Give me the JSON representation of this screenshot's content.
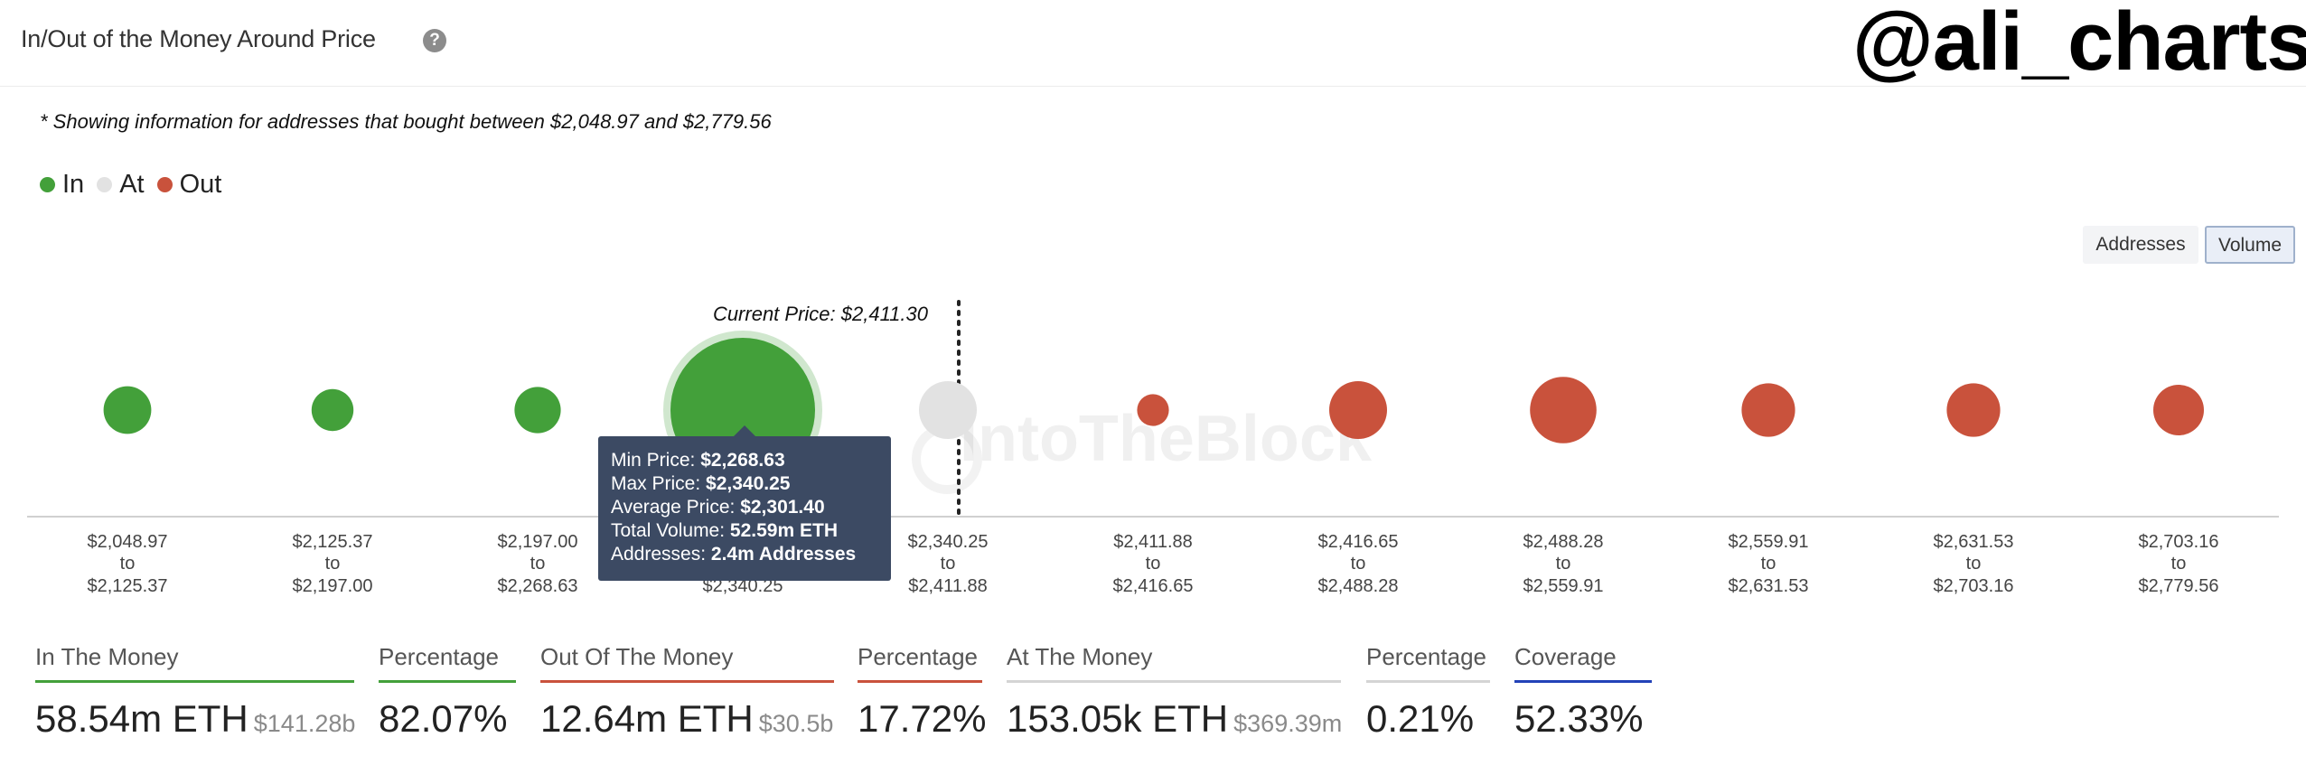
{
  "header": {
    "title": "In/Out of the Money Around Price",
    "help_icon": "question-circle-icon",
    "brand": "@ali_charts"
  },
  "note": "* Showing information for addresses that bought between $2,048.97 and $2,779.56",
  "legend": [
    {
      "label": "In",
      "color": "#43a03a"
    },
    {
      "label": "At",
      "color": "#e2e2e2"
    },
    {
      "label": "Out",
      "color": "#c9523c"
    }
  ],
  "toggles": {
    "addresses": "Addresses",
    "volume": "Volume",
    "selected": "Volume"
  },
  "watermark": "IntoTheBlock",
  "chart_data": {
    "type": "scatter",
    "current_price_label": "Current Price: $2,411.30",
    "current_price": 2411.3,
    "buckets": [
      {
        "from": "$2,048.97",
        "to": "$2,125.37",
        "status": "in",
        "relative_volume": 0.33
      },
      {
        "from": "$2,125.37",
        "to": "$2,197.00",
        "status": "in",
        "relative_volume": 0.29
      },
      {
        "from": "$2,197.00",
        "to": "$2,268.63",
        "status": "in",
        "relative_volume": 0.32
      },
      {
        "from": "$2,268.63",
        "to": "$2,340.25",
        "status": "in",
        "relative_volume": 1.0,
        "highlighted": true
      },
      {
        "from": "$2,340.25",
        "to": "$2,411.88",
        "status": "at",
        "relative_volume": 0.4
      },
      {
        "from": "$2,411.88",
        "to": "$2,416.65",
        "status": "out",
        "relative_volume": 0.22
      },
      {
        "from": "$2,416.65",
        "to": "$2,488.28",
        "status": "out",
        "relative_volume": 0.4
      },
      {
        "from": "$2,488.28",
        "to": "$2,559.91",
        "status": "out",
        "relative_volume": 0.46
      },
      {
        "from": "$2,559.91",
        "to": "$2,631.53",
        "status": "out",
        "relative_volume": 0.37
      },
      {
        "from": "$2,631.53",
        "to": "$2,703.16",
        "status": "out",
        "relative_volume": 0.37
      },
      {
        "from": "$2,703.16",
        "to": "$2,779.56",
        "status": "out",
        "relative_volume": 0.35
      }
    ],
    "to_word": "to",
    "colors": {
      "in": "#43a03a",
      "at": "#e2e2e2",
      "out": "#c9523c"
    }
  },
  "tooltip": {
    "min_label": "Min Price:",
    "min_value": "$2,268.63",
    "max_label": "Max Price:",
    "max_value": "$2,340.25",
    "avg_label": "Average Price:",
    "avg_value": "$2,301.40",
    "vol_label": "Total Volume:",
    "vol_value": "52.59m ETH",
    "addr_label": "Addresses:",
    "addr_value": "2.4m Addresses"
  },
  "stats": [
    {
      "label": "In The Money",
      "value": "58.54m ETH",
      "sub": "$141.28b",
      "color": "#43a03a"
    },
    {
      "label": "Percentage",
      "value": "82.07%",
      "sub": "",
      "color": "#43a03a"
    },
    {
      "label": "Out Of The Money",
      "value": "12.64m ETH",
      "sub": "$30.5b",
      "color": "#c9523c"
    },
    {
      "label": "Percentage",
      "value": "17.72%",
      "sub": "",
      "color": "#c9523c"
    },
    {
      "label": "At The Money",
      "value": "153.05k ETH",
      "sub": "$369.39m",
      "color": "#d4d4d4"
    },
    {
      "label": "Percentage",
      "value": "0.21%",
      "sub": "",
      "color": "#d4d4d4"
    },
    {
      "label": "Coverage",
      "value": "52.33%",
      "sub": "",
      "color": "#2342b8"
    }
  ]
}
